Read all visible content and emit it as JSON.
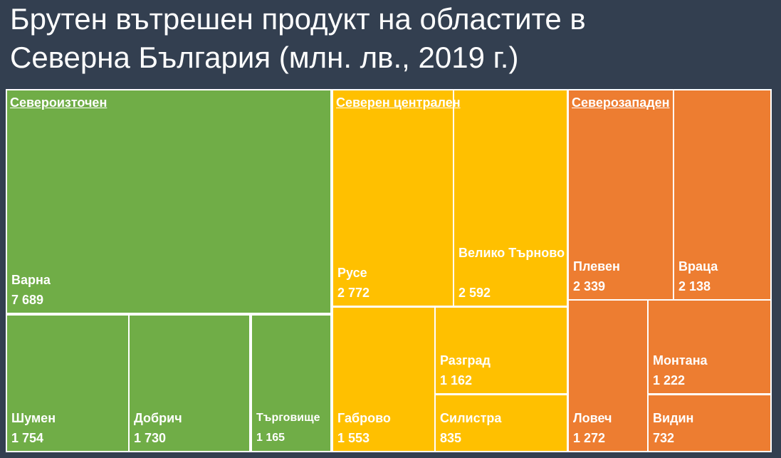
{
  "title_line1": "Брутен вътрешен продукт на областите в",
  "title_line2": "Северна България (млн. лв., 2019 г.)",
  "chart_data": {
    "type": "treemap",
    "title": "Брутен вътрешен продукт на областите в Северна България (млн. лв., 2019 г.)",
    "groups": [
      {
        "name": "Североизточен",
        "color": "#70ad47",
        "items": [
          {
            "name": "Варна",
            "value": 7689,
            "label": "7 689"
          },
          {
            "name": "Шумен",
            "value": 1754,
            "label": "1 754"
          },
          {
            "name": "Добрич",
            "value": 1730,
            "label": "1 730"
          },
          {
            "name": "Търговище",
            "value": 1165,
            "label": "1 165"
          }
        ]
      },
      {
        "name": "Северен централен",
        "color": "#ffc000",
        "items": [
          {
            "name": "Русе",
            "value": 2772,
            "label": "2 772"
          },
          {
            "name": "Велико Търново",
            "value": 2592,
            "label": "2 592"
          },
          {
            "name": "Габрово",
            "value": 1553,
            "label": "1 553"
          },
          {
            "name": "Разград",
            "value": 1162,
            "label": "1 162"
          },
          {
            "name": "Силистра",
            "value": 835,
            "label": "835"
          }
        ]
      },
      {
        "name": "Северозападен",
        "color": "#ed7d31",
        "items": [
          {
            "name": "Плевен",
            "value": 2339,
            "label": "2 339"
          },
          {
            "name": "Враца",
            "value": 2138,
            "label": "2 138"
          },
          {
            "name": "Ловеч",
            "value": 1272,
            "label": "1 272"
          },
          {
            "name": "Монтана",
            "value": 1222,
            "label": "1 222"
          },
          {
            "name": "Видин",
            "value": 732,
            "label": "732"
          }
        ]
      }
    ]
  }
}
